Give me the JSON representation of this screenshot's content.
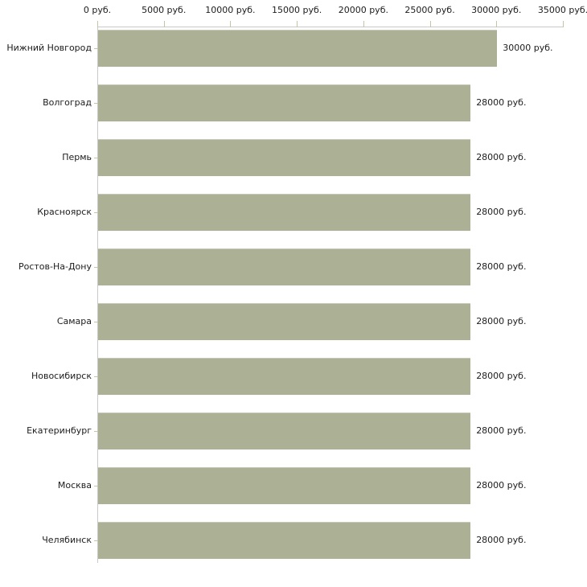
{
  "chart_data": {
    "type": "bar",
    "orientation": "horizontal",
    "title": "",
    "xlabel": "",
    "ylabel": "",
    "grid": false,
    "legend": false,
    "xlim": [
      0,
      35000
    ],
    "unit_suffix": "руб.",
    "categories": [
      "Нижний Новгород",
      "Волгоград",
      "Пермь",
      "Красноярск",
      "Ростов-На-Дону",
      "Самара",
      "Новосибирск",
      "Екатеринбург",
      "Москва",
      "Челябинск"
    ],
    "values": [
      30000,
      28000,
      28000,
      28000,
      28000,
      28000,
      28000,
      28000,
      28000,
      28000
    ],
    "value_labels": [
      "30000 руб.",
      "28000 руб.",
      "28000 руб.",
      "28000 руб.",
      "28000 руб.",
      "28000 руб.",
      "28000 руб.",
      "28000 руб.",
      "28000 руб.",
      "28000 руб."
    ],
    "x_ticks": [
      {
        "value": 0,
        "label": "0 руб."
      },
      {
        "value": 5000,
        "label": "5000 руб."
      },
      {
        "value": 10000,
        "label": "10000 руб."
      },
      {
        "value": 15000,
        "label": "15000 руб."
      },
      {
        "value": 20000,
        "label": "20000 руб."
      },
      {
        "value": 25000,
        "label": "25000 руб."
      },
      {
        "value": 30000,
        "label": "30000 руб."
      },
      {
        "value": 35000,
        "label": "35000 руб."
      }
    ],
    "colors": {
      "bar": "#acb196",
      "bar_top_edge": "#c6c8b5",
      "axis": "#c9c9c9",
      "tick": "#c3c6a3",
      "text": "#1c1c1c",
      "background": "#ffffff"
    }
  }
}
